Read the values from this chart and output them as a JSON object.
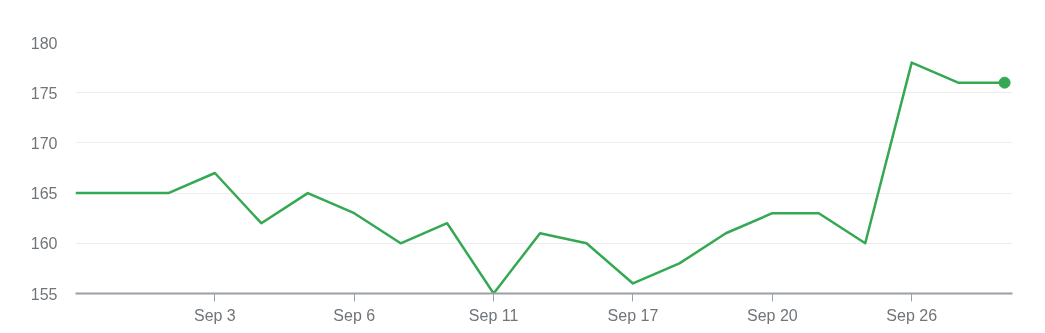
{
  "chart_data": {
    "type": "line",
    "categories": [
      null,
      null,
      null,
      "Sep 3",
      null,
      null,
      "Sep 6",
      null,
      null,
      "Sep 11",
      null,
      null,
      "Sep 17",
      null,
      null,
      "Sep 20",
      null,
      null,
      "Sep 26",
      null,
      null
    ],
    "series": [
      {
        "color": "#34a853",
        "values": [
          165,
          165,
          165,
          167,
          162,
          165,
          163,
          160,
          162,
          155,
          161,
          160,
          156,
          158,
          161,
          163,
          163,
          160,
          178,
          176,
          176
        ]
      }
    ],
    "ylim": [
      155,
      180
    ],
    "yticks": [
      155,
      160,
      165,
      170,
      175,
      180
    ],
    "grid": "y",
    "marker": "none",
    "line_style": "solid"
  }
}
